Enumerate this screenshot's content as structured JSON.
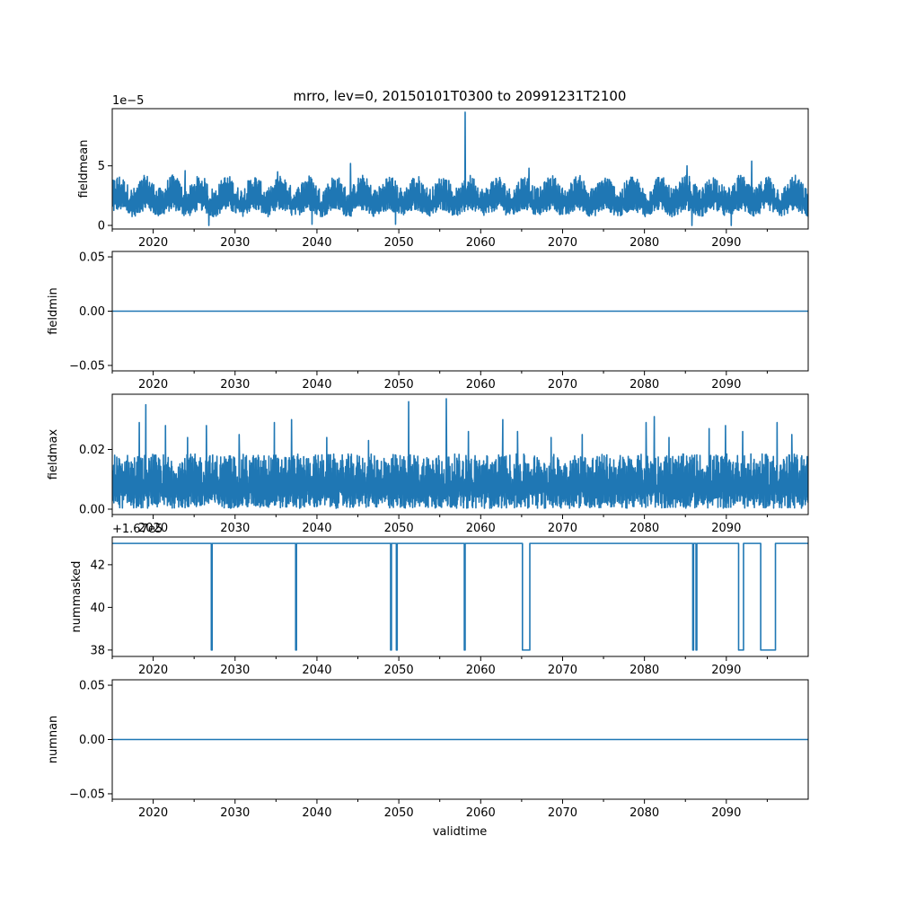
{
  "chart_data": {
    "type": "line",
    "title": "mrro, lev=0, 20150101T0300 to 20991231T2100",
    "xlabel": "validtime",
    "xlim": [
      2015.0,
      2100.0
    ],
    "x_major_ticks": [
      2020,
      2030,
      2040,
      2050,
      2060,
      2070,
      2080,
      2090
    ],
    "x_tick_labels": [
      "2020",
      "2030",
      "2040",
      "2050",
      "2060",
      "2070",
      "2080",
      "2090"
    ],
    "x_minor_ticks": [
      2015,
      2025,
      2035,
      2045,
      2055,
      2065,
      2075,
      2085,
      2095
    ],
    "grid": false,
    "legend": "none",
    "line_color": "#1f77b4",
    "panels": [
      {
        "ylabel": "fieldmean",
        "offset_text": "1e−5",
        "ylim": [
          -0.3,
          9.8
        ],
        "y_ticks": [
          0,
          5
        ],
        "y_tick_labels": [
          "0",
          "5"
        ],
        "style": "dense",
        "band": {
          "low": 1.0,
          "high": 3.7,
          "center": 2.2,
          "wave_amp": 0.55,
          "wave_period_years": 3.3
        },
        "spikes": [
          {
            "x": 2023.9,
            "y": 4.6
          },
          {
            "x": 2026.8,
            "y": 0.0
          },
          {
            "x": 2035.2,
            "y": 4.5
          },
          {
            "x": 2039.4,
            "y": 0.1
          },
          {
            "x": 2044.1,
            "y": 5.2
          },
          {
            "x": 2049.6,
            "y": 0.1
          },
          {
            "x": 2058.1,
            "y": 9.5
          },
          {
            "x": 2065.9,
            "y": 4.8
          },
          {
            "x": 2085.2,
            "y": 5.0
          },
          {
            "x": 2085.8,
            "y": 0.0
          },
          {
            "x": 2093.1,
            "y": 5.4
          },
          {
            "x": 2090.6,
            "y": 0.0
          }
        ],
        "points": null
      },
      {
        "ylabel": "fieldmin",
        "offset_text": "",
        "ylim": [
          -0.055,
          0.055
        ],
        "y_ticks": [
          -0.05,
          0.0,
          0.05
        ],
        "y_tick_labels": [
          "−0.05",
          "0.00",
          "0.05"
        ],
        "style": "line",
        "points": [
          [
            2015.0,
            0.0
          ],
          [
            2100.0,
            0.0
          ]
        ]
      },
      {
        "ylabel": "fieldmax",
        "offset_text": "",
        "ylim": [
          -0.0018,
          0.0385
        ],
        "y_ticks": [
          0.0,
          0.02
        ],
        "y_tick_labels": [
          "0.00",
          "0.02"
        ],
        "style": "dense",
        "band": {
          "low": 0.0003,
          "high": 0.0185,
          "center": 0.007,
          "wave_amp": 0.0,
          "wave_period_years": 1.0
        },
        "spikes": [
          {
            "x": 2018.3,
            "y": 0.029
          },
          {
            "x": 2019.1,
            "y": 0.035
          },
          {
            "x": 2021.5,
            "y": 0.028
          },
          {
            "x": 2024.2,
            "y": 0.024
          },
          {
            "x": 2026.5,
            "y": 0.028
          },
          {
            "x": 2030.5,
            "y": 0.025
          },
          {
            "x": 2034.8,
            "y": 0.029
          },
          {
            "x": 2036.9,
            "y": 0.03
          },
          {
            "x": 2041.2,
            "y": 0.024
          },
          {
            "x": 2046.3,
            "y": 0.023
          },
          {
            "x": 2051.2,
            "y": 0.036
          },
          {
            "x": 2055.8,
            "y": 0.037
          },
          {
            "x": 2058.5,
            "y": 0.026
          },
          {
            "x": 2062.7,
            "y": 0.03
          },
          {
            "x": 2064.5,
            "y": 0.026
          },
          {
            "x": 2068.6,
            "y": 0.024
          },
          {
            "x": 2072.4,
            "y": 0.025
          },
          {
            "x": 2080.2,
            "y": 0.029
          },
          {
            "x": 2081.2,
            "y": 0.031
          },
          {
            "x": 2083.0,
            "y": 0.024
          },
          {
            "x": 2087.9,
            "y": 0.027
          },
          {
            "x": 2089.9,
            "y": 0.028
          },
          {
            "x": 2092.0,
            "y": 0.026
          },
          {
            "x": 2096.2,
            "y": 0.029
          },
          {
            "x": 2098.0,
            "y": 0.025
          }
        ],
        "points": null
      },
      {
        "ylabel": "nummasked",
        "offset_text": "+1.67e5",
        "ylim": [
          37.7,
          43.3
        ],
        "y_ticks": [
          38,
          40,
          42
        ],
        "y_tick_labels": [
          "38",
          "40",
          "42"
        ],
        "style": "line",
        "points": [
          [
            2015.0,
            43
          ],
          [
            2027.1,
            43
          ],
          [
            2027.1,
            38
          ],
          [
            2027.2,
            38
          ],
          [
            2027.2,
            43
          ],
          [
            2037.4,
            43
          ],
          [
            2037.4,
            38
          ],
          [
            2037.5,
            38
          ],
          [
            2037.5,
            43
          ],
          [
            2049.0,
            43
          ],
          [
            2049.0,
            38
          ],
          [
            2049.1,
            38
          ],
          [
            2049.1,
            43
          ],
          [
            2049.7,
            43
          ],
          [
            2049.7,
            38
          ],
          [
            2049.8,
            38
          ],
          [
            2049.8,
            43
          ],
          [
            2058.0,
            43
          ],
          [
            2058.0,
            38
          ],
          [
            2058.1,
            38
          ],
          [
            2058.1,
            43
          ],
          [
            2065.1,
            43
          ],
          [
            2065.1,
            38
          ],
          [
            2066.0,
            38
          ],
          [
            2066.0,
            43
          ],
          [
            2085.9,
            43
          ],
          [
            2085.9,
            38
          ],
          [
            2086.0,
            38
          ],
          [
            2086.0,
            43
          ],
          [
            2086.3,
            43
          ],
          [
            2086.3,
            38
          ],
          [
            2086.4,
            38
          ],
          [
            2086.4,
            43
          ],
          [
            2091.5,
            43
          ],
          [
            2091.5,
            38
          ],
          [
            2092.1,
            38
          ],
          [
            2092.1,
            43
          ],
          [
            2094.2,
            43
          ],
          [
            2094.2,
            38
          ],
          [
            2096.0,
            38
          ],
          [
            2096.0,
            43
          ],
          [
            2100.0,
            43
          ]
        ]
      },
      {
        "ylabel": "numnan",
        "offset_text": "",
        "ylim": [
          -0.055,
          0.055
        ],
        "y_ticks": [
          -0.05,
          0.0,
          0.05
        ],
        "y_tick_labels": [
          "−0.05",
          "0.00",
          "0.05"
        ],
        "style": "line",
        "points": [
          [
            2015.0,
            0.0
          ],
          [
            2100.0,
            0.0
          ]
        ]
      }
    ]
  }
}
